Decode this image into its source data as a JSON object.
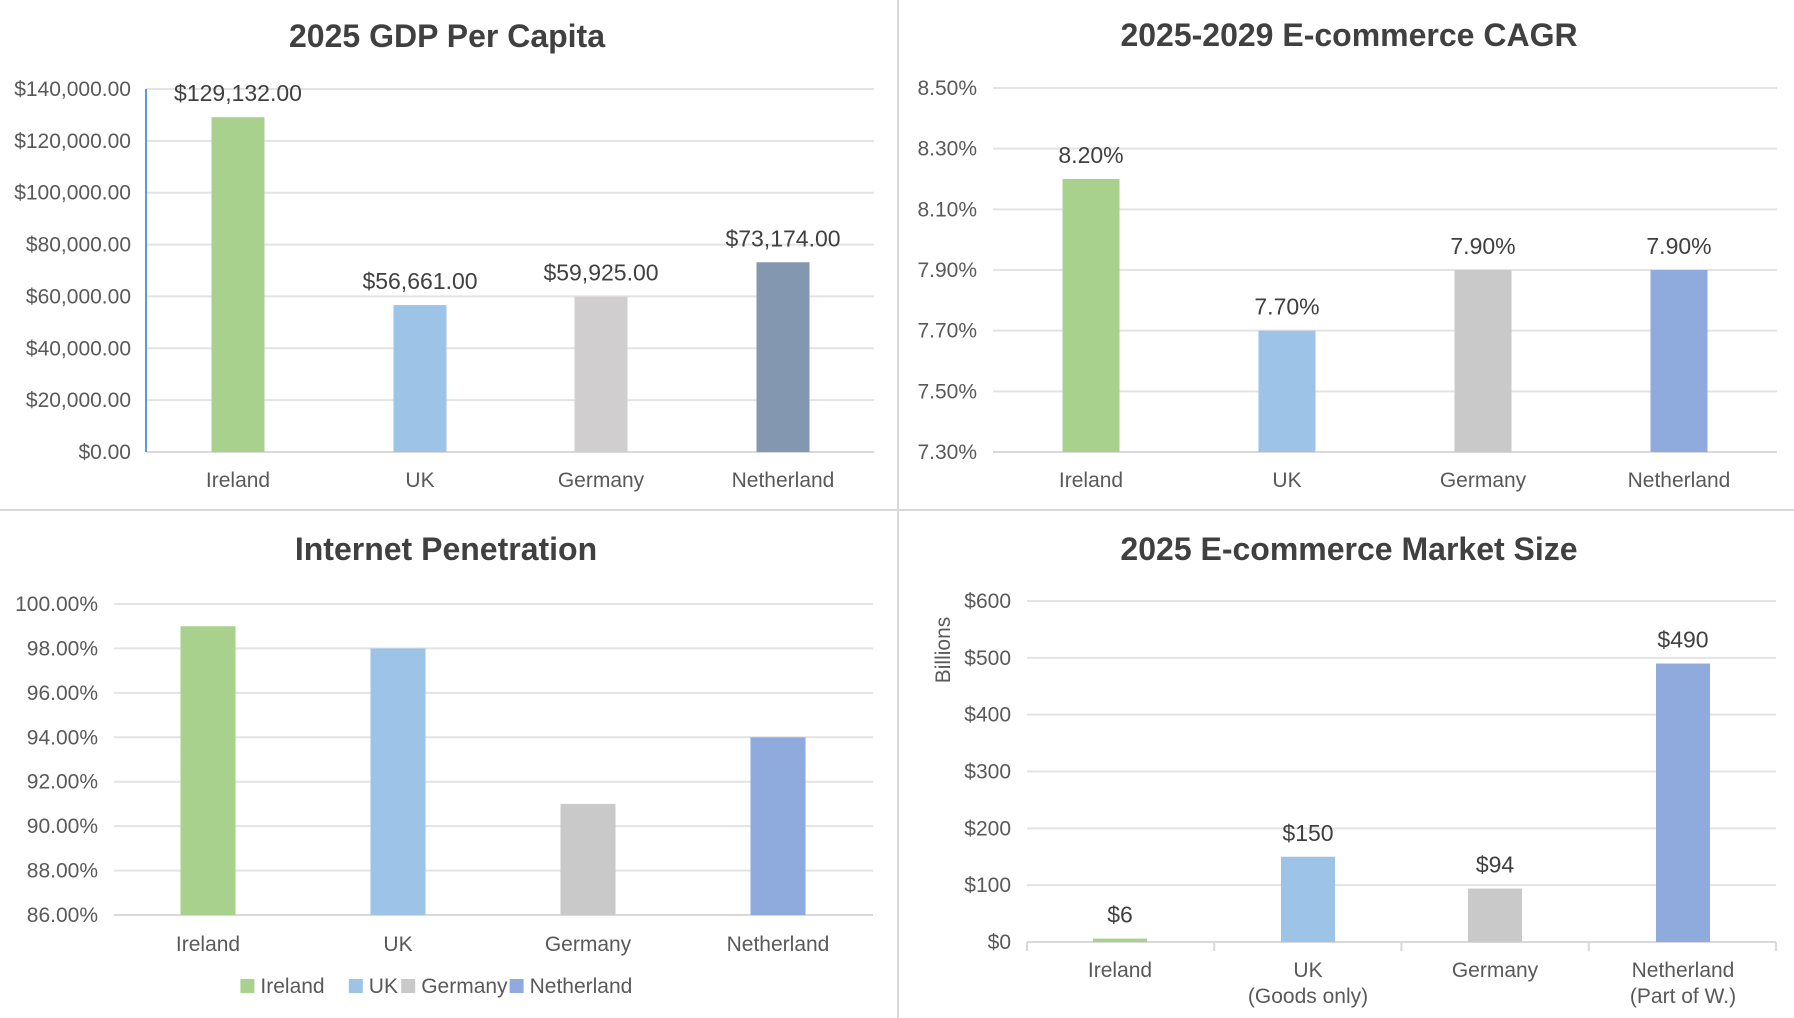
{
  "colors": {
    "ireland": "#a9d18e",
    "uk": "#9dc3e6",
    "germany": "#c9c9c9",
    "germany_gdp": "#d0cece",
    "netherland": "#8faadc",
    "netherland_gdp": "#8497b0",
    "gridline": "#e3e3e3",
    "axis_text": "#595959",
    "title_text": "#404040",
    "label_text": "#404040",
    "accent_axis": "#5b9bd5"
  },
  "chart_data": [
    {
      "id": "gdp",
      "type": "bar",
      "title": "2025 GDP Per Capita",
      "xlabel": "",
      "ylabel": "",
      "categories": [
        "Ireland",
        "UK",
        "Germany",
        "Netherland"
      ],
      "values": [
        129132,
        56661,
        59925,
        73174
      ],
      "data_labels": [
        "$129,132.00",
        "$56,661.00",
        "$59,925.00",
        "$73,174.00"
      ],
      "bar_colors": [
        "ireland",
        "uk",
        "germany_gdp",
        "netherland_gdp"
      ],
      "ylim": [
        0,
        140000
      ],
      "yticks": [
        0,
        20000,
        40000,
        60000,
        80000,
        100000,
        120000,
        140000
      ],
      "ytick_labels": [
        "$0.00",
        "$20,000.00",
        "$40,000.00",
        "$60,000.00",
        "$80,000.00",
        "$100,000.00",
        "$120,000.00",
        "$140,000.00"
      ],
      "grid": true,
      "legend": "none"
    },
    {
      "id": "cagr",
      "type": "bar",
      "title": "2025-2029 E-commerce CAGR",
      "xlabel": "",
      "ylabel": "",
      "categories": [
        "Ireland",
        "UK",
        "Germany",
        "Netherland"
      ],
      "values": [
        8.2,
        7.7,
        7.9,
        7.9
      ],
      "data_labels": [
        "8.20%",
        "7.70%",
        "7.90%",
        "7.90%"
      ],
      "bar_colors": [
        "ireland",
        "uk",
        "germany",
        "netherland"
      ],
      "ylim": [
        7.3,
        8.5
      ],
      "yticks": [
        7.3,
        7.5,
        7.7,
        7.9,
        8.1,
        8.3,
        8.5
      ],
      "ytick_labels": [
        "7.30%",
        "7.50%",
        "7.70%",
        "7.90%",
        "8.10%",
        "8.30%",
        "8.50%"
      ],
      "grid": true,
      "legend": "none"
    },
    {
      "id": "internet",
      "type": "bar",
      "title": "Internet Penetration",
      "xlabel": "",
      "ylabel": "",
      "categories": [
        "Ireland",
        "UK",
        "Germany",
        "Netherland"
      ],
      "values": [
        99,
        98,
        91,
        94
      ],
      "data_labels": [],
      "bar_colors": [
        "ireland",
        "uk",
        "germany",
        "netherland"
      ],
      "ylim": [
        86,
        100
      ],
      "yticks": [
        86,
        88,
        90,
        92,
        94,
        96,
        98,
        100
      ],
      "ytick_labels": [
        "86.00%",
        "88.00%",
        "90.00%",
        "92.00%",
        "94.00%",
        "96.00%",
        "98.00%",
        "100.00%"
      ],
      "grid": true,
      "legend": "bottom",
      "legend_entries": [
        "Ireland",
        "UK",
        "Germany",
        "Netherland"
      ]
    },
    {
      "id": "market",
      "type": "bar",
      "title": "2025 E-commerce Market Size",
      "xlabel": "",
      "ylabel": "Billions",
      "categories": [
        "Ireland",
        "UK",
        "Germany",
        "Netherland"
      ],
      "category_sublabels": [
        "",
        "(Goods only)",
        "",
        "(Part of W.)"
      ],
      "values": [
        6,
        150,
        94,
        490
      ],
      "data_labels": [
        "$6",
        "$150",
        "$94",
        "$490"
      ],
      "bar_colors": [
        "ireland",
        "uk",
        "germany",
        "netherland"
      ],
      "ylim": [
        0,
        600
      ],
      "yticks": [
        0,
        100,
        200,
        300,
        400,
        500,
        600
      ],
      "ytick_labels": [
        "$0",
        "$100",
        "$200",
        "$300",
        "$400",
        "$500",
        "$600"
      ],
      "grid": true,
      "legend": "none"
    }
  ]
}
